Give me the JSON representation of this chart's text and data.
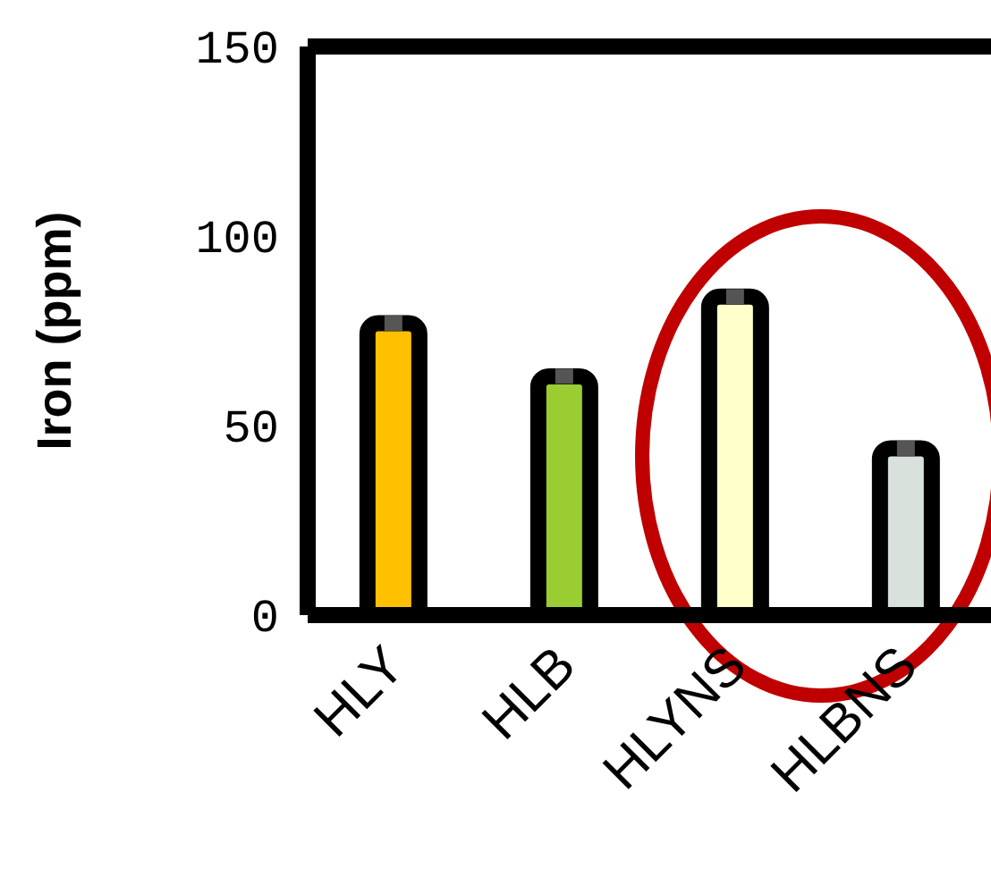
{
  "chart_data": {
    "type": "bar",
    "ylabel": "Iron (ppm)",
    "categories": [
      "HLY",
      "HLB",
      "HLYNS",
      "HLBNS"
    ],
    "values": [
      77,
      63,
      84,
      44
    ],
    "colors": [
      "#ffc000",
      "#9acd32",
      "#ffffcc",
      "#d9e1dc"
    ],
    "errors": [
      2,
      2,
      2,
      2
    ],
    "ylim": [
      0,
      150
    ],
    "yticks": [
      0,
      50,
      100,
      150
    ],
    "grid": false,
    "legend": false
  }
}
